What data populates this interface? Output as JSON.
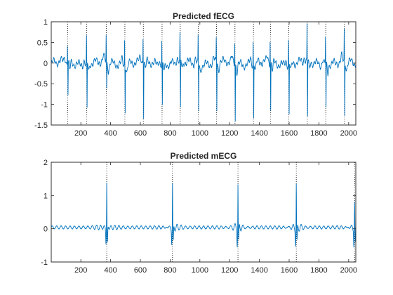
{
  "chart_data": [
    {
      "type": "line",
      "title": "Predicted fECG",
      "xlabel": "",
      "ylabel": "",
      "xlim": [
        1,
        2048
      ],
      "ylim": [
        -1.5,
        1
      ],
      "xticks": [
        200,
        400,
        600,
        800,
        1000,
        1200,
        1400,
        1600,
        1800,
        2000
      ],
      "xtick_labels": [
        "200",
        "400",
        "600",
        "800",
        "1000",
        "1200",
        "1400",
        "1600",
        "1800",
        "2000"
      ],
      "yticks": [
        -1.5,
        -1,
        -0.5,
        0,
        0.5,
        1
      ],
      "ytick_labels": [
        "-1.5",
        "-1",
        "-0.5",
        "0",
        "0.5",
        "1"
      ],
      "series_color": "#0072BD",
      "marker_color": "#000000",
      "peak_markers_x": [
        112,
        240,
        372,
        496,
        620,
        746,
        868,
        990,
        1112,
        1236,
        1360,
        1474,
        1598,
        1722,
        1846,
        1972
      ],
      "peak_max": [
        0.45,
        0.6,
        0.62,
        0.58,
        0.62,
        0.55,
        0.6,
        0.6,
        0.6,
        0.55,
        0.55,
        0.58,
        0.55,
        0.85,
        0.65,
        0.75
      ],
      "peak_min": [
        -0.75,
        -1.12,
        -0.65,
        -1.1,
        -1.3,
        -1.05,
        -1.2,
        -1.15,
        -1.12,
        -1.35,
        -1.3,
        -1.15,
        -1.25,
        -1.35,
        -1.1,
        -1.3
      ],
      "baseline_range": [
        -0.2,
        0.2
      ],
      "grid": false
    },
    {
      "type": "line",
      "title": "Predicted mECG",
      "xlabel": "",
      "ylabel": "",
      "xlim": [
        1,
        2048
      ],
      "ylim": [
        -1,
        2
      ],
      "xticks": [
        200,
        400,
        600,
        800,
        1000,
        1200,
        1400,
        1600,
        1800,
        2000
      ],
      "xtick_labels": [
        "200",
        "400",
        "600",
        "800",
        "1000",
        "1200",
        "1400",
        "1600",
        "1800",
        "2000"
      ],
      "yticks": [
        -1,
        0,
        1,
        2
      ],
      "ytick_labels": [
        "-1",
        "0",
        "1",
        "2"
      ],
      "series_color": "#0072BD",
      "marker_color": "#000000",
      "peak_markers_x": [
        374,
        816,
        1256,
        1648,
        2040
      ],
      "peak_max": [
        1.35,
        1.3,
        1.3,
        1.3,
        0.75
      ],
      "peak_min": [
        -0.5,
        -0.5,
        -0.5,
        -0.5,
        -0.55
      ],
      "baseline_range": [
        -0.05,
        0.1
      ],
      "grid": false
    }
  ]
}
